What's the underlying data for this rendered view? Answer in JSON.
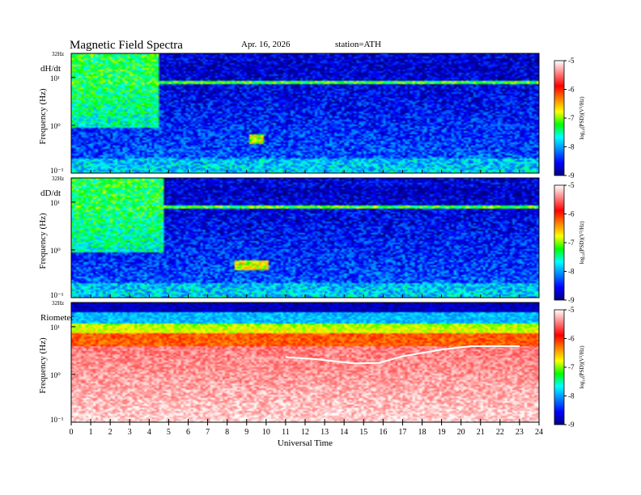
{
  "header": {
    "title": "Magnetic  Field  Spectra",
    "date": "Apr. 16, 2026",
    "station": "station=ATH"
  },
  "chart_data": [
    {
      "type": "heatmap",
      "panel_label": "dH/dt",
      "ylabel": "Frequency  (Hz)",
      "y_scale": "log",
      "y_top_label": "32Hz",
      "y_tick_labels": [
        "10¹",
        "10⁰",
        "10⁻¹"
      ],
      "x_range": [
        0,
        24
      ],
      "colorbar": {
        "label": "log₁₀(PSD)(V²/Hz)",
        "range": [
          -9,
          -5
        ],
        "ticks": [
          "-5",
          "-6",
          "-7",
          "-8",
          "-9"
        ]
      },
      "features": [
        {
          "kind": "broadband enhancement",
          "x": [
            0,
            4.5
          ],
          "level": -7.3
        },
        {
          "kind": "spectral line",
          "freq_hz": 7.8,
          "x": [
            0,
            24
          ],
          "level": -7.2
        },
        {
          "kind": "isolated emission",
          "x": [
            9.1,
            9.9
          ],
          "freq_hz": [
            0.42,
            0.65
          ],
          "level": -6.9
        }
      ]
    },
    {
      "type": "heatmap",
      "panel_label": "dD/dt",
      "ylabel": "Frequency  (Hz)",
      "y_scale": "log",
      "y_top_label": "32Hz",
      "y_tick_labels": [
        "10¹",
        "10⁰",
        "10⁻¹"
      ],
      "x_range": [
        0,
        24
      ],
      "colorbar": {
        "label": "log₁₀(PSD)(V²/Hz)",
        "range": [
          -9,
          -5
        ],
        "ticks": [
          "-5",
          "-6",
          "-7",
          "-8",
          "-9"
        ]
      },
      "features": [
        {
          "kind": "broadband enhancement",
          "x": [
            0,
            4.7
          ],
          "level": -7.3
        },
        {
          "kind": "spectral line",
          "freq_hz": 7.8,
          "x": [
            0,
            24
          ],
          "level": -7.2
        },
        {
          "kind": "isolated emission",
          "x": [
            8.4,
            10.1
          ],
          "freq_hz": [
            0.38,
            0.62
          ],
          "level": -6.8
        }
      ]
    },
    {
      "type": "heatmap",
      "panel_label": "Riometer",
      "ylabel": "Frequency  (Hz)",
      "y_scale": "log",
      "y_top_label": "32Hz",
      "y_tick_labels": [
        "10¹",
        "10⁰",
        "10⁻¹"
      ],
      "x_range": [
        0,
        24
      ],
      "xlabel": "Universal Time",
      "x_tick_labels": [
        "0",
        "1",
        "2",
        "3",
        "4",
        "5",
        "6",
        "7",
        "8",
        "9",
        "10",
        "11",
        "12",
        "13",
        "14",
        "15",
        "16",
        "17",
        "18",
        "19",
        "20",
        "21",
        "22",
        "23",
        "24"
      ],
      "colorbar": {
        "label": "log₁₀(PSD)(V²/Hz)",
        "range": [
          -9,
          -5
        ],
        "ticks": [
          "-5",
          "-6",
          "-7",
          "-8",
          "-9"
        ]
      },
      "features": [
        {
          "kind": "white trace",
          "points": [
            [
              11.0,
              2.3
            ],
            [
              12.5,
              2.1
            ],
            [
              14.5,
              1.7
            ],
            [
              15.8,
              1.75
            ],
            [
              17.0,
              2.4
            ],
            [
              19.0,
              3.3
            ],
            [
              20.5,
              3.9
            ],
            [
              23.0,
              3.9
            ]
          ]
        }
      ]
    }
  ],
  "colors": {
    "colormap": [
      "#000080",
      "#0000ff",
      "#0080ff",
      "#00ffff",
      "#00ff00",
      "#ffff00",
      "#ff8000",
      "#ff0000",
      "#ff8080",
      "#ffffff"
    ]
  }
}
